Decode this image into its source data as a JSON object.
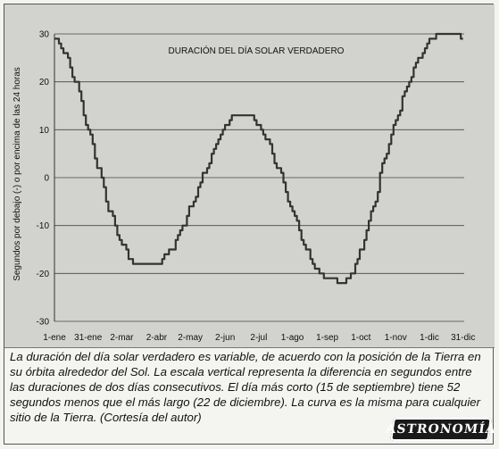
{
  "chart_data": {
    "type": "line",
    "title": "DURACIÓN DEL DÍA SOLAR VERDADERO",
    "ylabel": "Segundos por debajo (-) o por encima de las 24 horas",
    "xlabel": "",
    "ylim": [
      -30,
      30
    ],
    "xlim_day": [
      1,
      366
    ],
    "y_ticks": [
      30,
      20,
      10,
      0,
      -10,
      -20,
      -30
    ],
    "x_tick_labels": [
      "1-ene",
      "31-ene",
      "2-mar",
      "2-abr",
      "2-may",
      "2-jun",
      "2-jul",
      "1-ago",
      "1-sep",
      "1-oct",
      "1-nov",
      "1-dic",
      "31-dic"
    ],
    "x_tick_days": [
      1,
      31,
      61,
      92,
      122,
      153,
      183,
      213,
      244,
      274,
      305,
      335,
      365
    ],
    "grid": "horizontal",
    "legend": "none",
    "series": [
      {
        "x_day": [
          1,
          10,
          20,
          31,
          40,
          50,
          61,
          70,
          80,
          92,
          105,
          115,
          122,
          135,
          145,
          153,
          160,
          170,
          175,
          183,
          190,
          200,
          213,
          225,
          235,
          244,
          252,
          258,
          266,
          274,
          285,
          295,
          305,
          315,
          325,
          335,
          345,
          350,
          356,
          360,
          365
        ],
        "values": [
          29,
          26,
          20,
          10,
          2,
          -7,
          -14,
          -17.5,
          -18.5,
          -18,
          -15,
          -10.5,
          -6,
          1,
          7,
          11,
          13,
          13.2,
          13,
          11,
          8,
          2,
          -7,
          -15,
          -19.5,
          -21,
          -21.5,
          -21.8,
          -20,
          -15,
          -6,
          4,
          12,
          19,
          25,
          28.5,
          30.2,
          30.2,
          30,
          29.8,
          28.5
        ]
      }
    ],
    "colors": {
      "line": "#333333",
      "background": "#d2d2ce",
      "grid": "#444444"
    }
  },
  "caption": "La duración del día solar verdadero es variable, de acuerdo con la posición de la Tierra en su órbita alrededor del Sol. La escala vertical representa la diferencia en segundos entre las duraciones de dos días consecutivos. El día más corto (15 de septiembre) tiene 52 segundos menos que el más largo (22 de diciembre). La curva es la misma para cualquier sitio de la Tierra. (Cortesía del autor)",
  "logo": "ASTRONOMÍA"
}
